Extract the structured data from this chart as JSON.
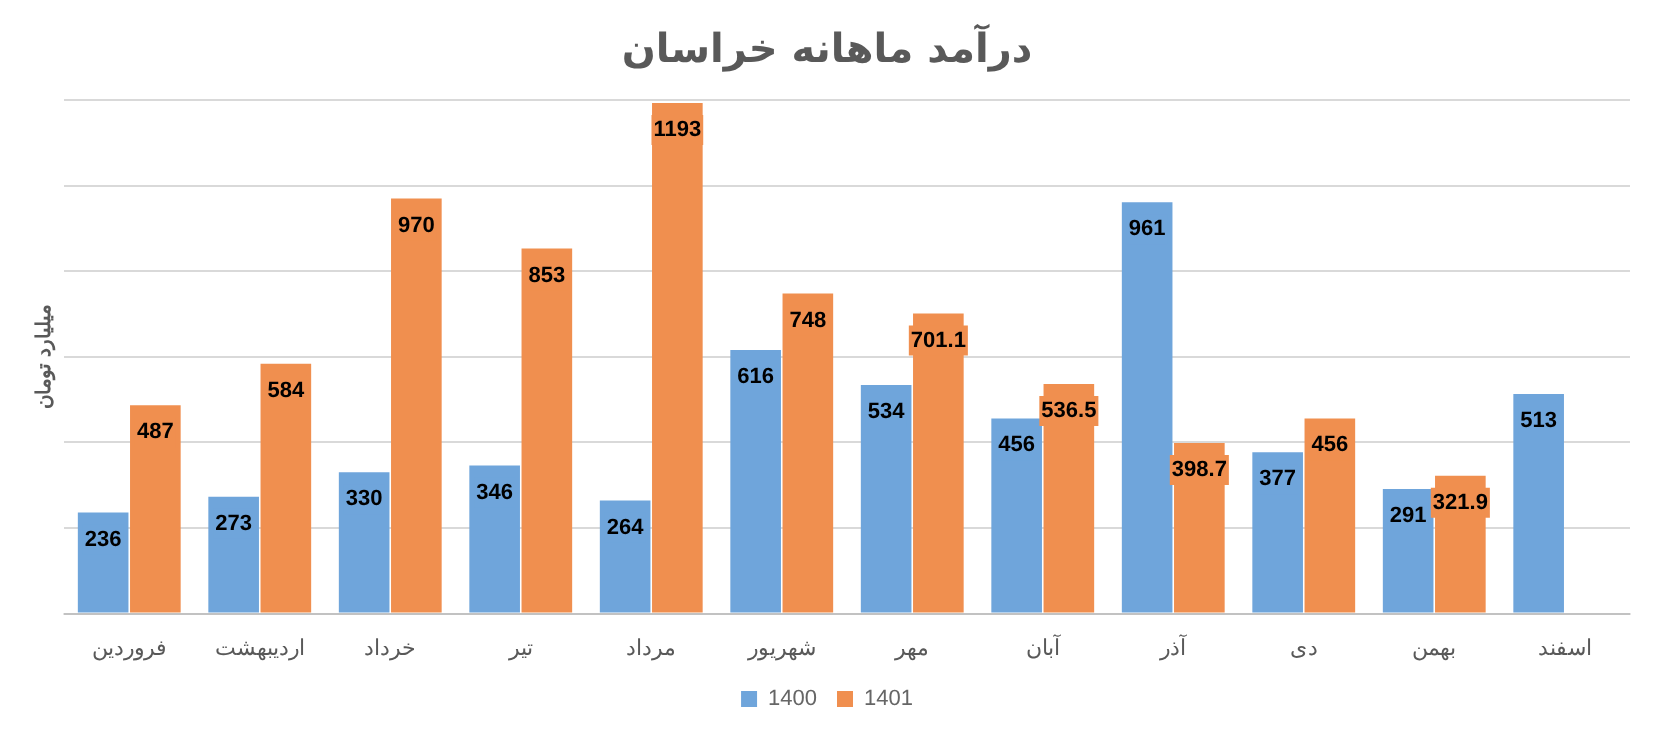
{
  "chart_data": {
    "type": "bar",
    "title": "درآمد ماهانه خراسان",
    "ylabel": "میلیارد تومان",
    "categories": [
      "فروردین",
      "اردیبهشت",
      "خرداد",
      "تیر",
      "مرداد",
      "شهریور",
      "مهر",
      "آبان",
      "آذر",
      "دی",
      "بهمن",
      "اسفند"
    ],
    "series": [
      {
        "name": "1400",
        "color": "#6fa5db",
        "values": [
          236,
          273,
          330,
          346,
          264,
          616,
          534,
          456,
          961,
          377,
          291,
          513
        ]
      },
      {
        "name": "1401",
        "color": "#f08f4f",
        "values": [
          487,
          584,
          970,
          853,
          1193,
          748,
          701.1,
          536.5,
          398.7,
          456,
          321.9,
          null
        ]
      }
    ],
    "tick_labels": "x",
    "grid": "y",
    "legend": "bottom",
    "data_labels": true
  }
}
